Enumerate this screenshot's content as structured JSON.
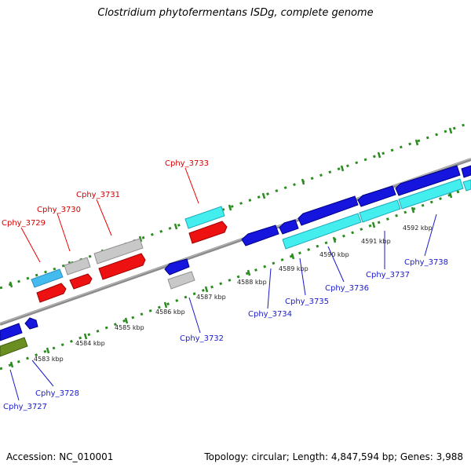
{
  "title": "Clostridium phytofermentans ISDg, complete genome",
  "footer": {
    "accession": "Accession: NC_010001",
    "topology": "Topology: circular; Length: 4,847,594 bp; Genes: 3,988"
  },
  "colors": {
    "backbone": "#8c8c8c",
    "dots": "#2a8c1f",
    "tick_major": "#2a8c1f",
    "label_forward": "#d40000",
    "label_reverse": "#1a1acc",
    "red": "#ee1111",
    "gray": "#c8c8c8",
    "cyan": "#44ddee",
    "lightblue": "#44bbee",
    "blue": "#1515dd",
    "olive": "#6b8e23"
  },
  "scale_labels": [
    "4583 kbp",
    "4584 kbp",
    "4585 kbp",
    "4586 kbp",
    "4587 kbp",
    "4588 kbp",
    "4589 kbp",
    "4590 kbp",
    "4591 kbp",
    "4592 kbp"
  ],
  "gene_labels": {
    "forward": [
      "Cphy_3729",
      "Cphy_3730",
      "Cphy_3731",
      "Cphy_3733"
    ],
    "reverse": [
      "Cphy_3727",
      "Cphy_3728",
      "Cphy_3732",
      "Cphy_3734",
      "Cphy_3735",
      "Cphy_3736",
      "Cphy_3737",
      "Cphy_3738"
    ]
  }
}
